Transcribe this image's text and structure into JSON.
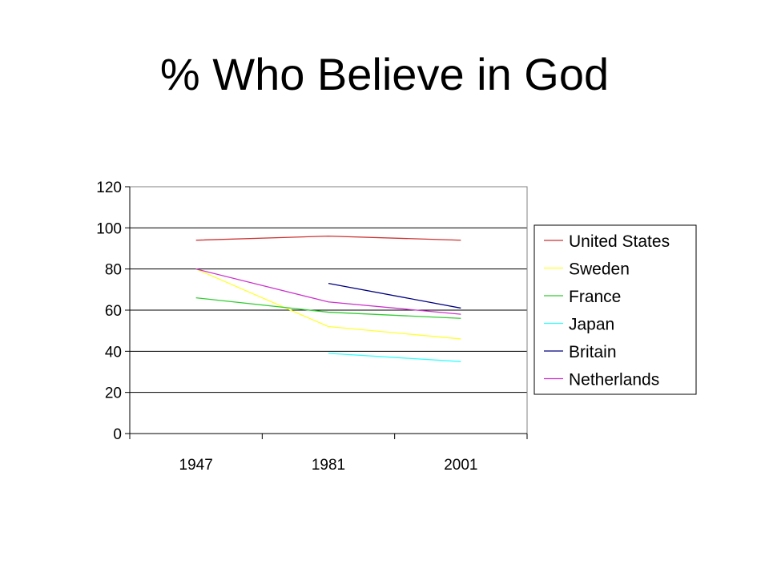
{
  "title": "% Who Believe in God",
  "chart_data": {
    "type": "line",
    "categories": [
      "1947",
      "1981",
      "2001"
    ],
    "ylim": [
      0,
      120
    ],
    "yticks": [
      0,
      20,
      40,
      60,
      80,
      100,
      120
    ],
    "grid": true,
    "legend_position": "right",
    "series": [
      {
        "name": "United States",
        "color": "#cc3333",
        "values": [
          94,
          96,
          94
        ]
      },
      {
        "name": "Sweden",
        "color": "#ffff33",
        "values": [
          80,
          52,
          46
        ]
      },
      {
        "name": "France",
        "color": "#33cc33",
        "values": [
          66,
          59,
          56
        ]
      },
      {
        "name": "Japan",
        "color": "#33ffff",
        "values": [
          null,
          39,
          35
        ]
      },
      {
        "name": "Britain",
        "color": "#000080",
        "values": [
          null,
          73,
          61
        ]
      },
      {
        "name": "Netherlands",
        "color": "#cc33cc",
        "values": [
          80,
          64,
          58
        ]
      }
    ]
  }
}
